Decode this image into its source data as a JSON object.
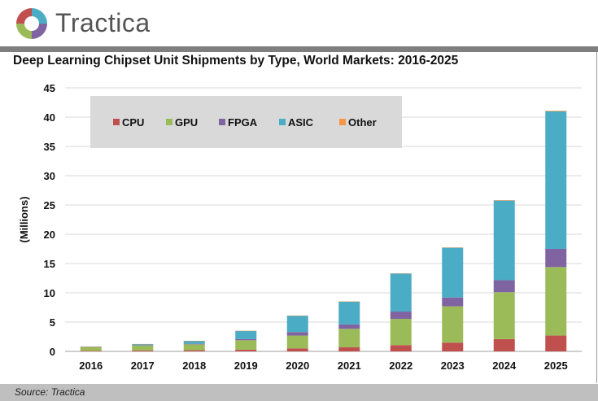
{
  "brand": "Tractica",
  "source": "Source: Tractica",
  "chart_data": {
    "type": "bar",
    "stacked": true,
    "title": "Deep Learning Chipset Unit Shipments by Type, World Markets: 2016-2025",
    "xlabel": "",
    "ylabel": "(Millions)",
    "ylim": [
      0,
      45
    ],
    "yticks": [
      0,
      5,
      10,
      15,
      20,
      25,
      30,
      35,
      40,
      45
    ],
    "grid": true,
    "legend": "top-left",
    "categories": [
      "2016",
      "2017",
      "2018",
      "2019",
      "2020",
      "2021",
      "2022",
      "2023",
      "2024",
      "2025"
    ],
    "series": [
      {
        "name": "CPU",
        "color": "#c0504d",
        "values": [
          0.1,
          0.15,
          0.2,
          0.3,
          0.5,
          0.7,
          1.07,
          1.5,
          2.1,
          2.7
        ]
      },
      {
        "name": "GPU",
        "color": "#9bbb59",
        "values": [
          0.6,
          0.85,
          1.0,
          1.6,
          2.2,
          3.15,
          4.48,
          6.2,
          8.0,
          11.7
        ]
      },
      {
        "name": "FPGA",
        "color": "#8064a2",
        "values": [
          0.05,
          0.05,
          0.1,
          0.2,
          0.6,
          0.75,
          1.25,
          1.5,
          2.05,
          3.1
        ]
      },
      {
        "name": "ASIC",
        "color": "#4bacc6",
        "values": [
          0.05,
          0.2,
          0.5,
          1.4,
          2.8,
          3.9,
          6.5,
          8.5,
          13.6,
          23.5
        ]
      },
      {
        "name": "Other",
        "color": "#f79646",
        "values": [
          0.01,
          0.01,
          0.01,
          0.01,
          0.02,
          0.02,
          0.03,
          0.05,
          0.07,
          0.1
        ]
      }
    ]
  }
}
